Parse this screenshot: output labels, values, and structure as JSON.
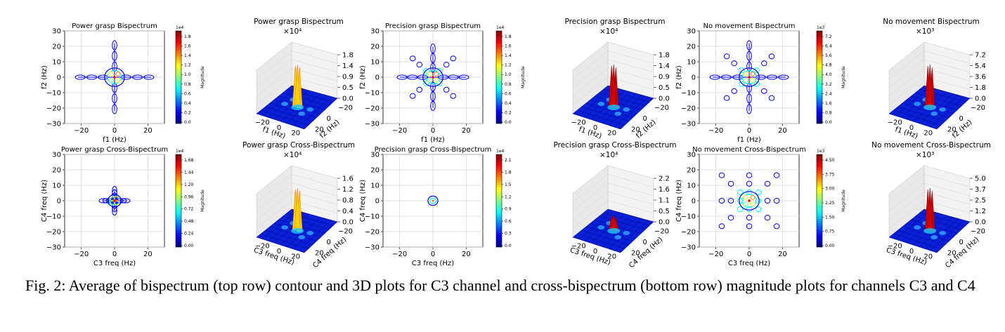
{
  "caption": {
    "label": "Fig. 2:",
    "text": "Average of bispectrum (top row) contour and 3D plots for C3 channel and cross-bispectrum (bottom row) magnitude plots for channels C3 and C4"
  },
  "colormap": [
    "#00007f",
    "#0000ff",
    "#0080ff",
    "#00ffff",
    "#80ff80",
    "#ffff00",
    "#ff8000",
    "#ff0000",
    "#7f0000"
  ],
  "chart_data": [
    {
      "type": "heatmap",
      "title": "Power grasp Bispectrum",
      "xlabel": "f1 (Hz)",
      "ylabel": "f2 (Hz)",
      "xlim": [
        -30,
        30
      ],
      "ylim": [
        -30,
        30
      ],
      "xticks": [
        -20,
        0,
        20
      ],
      "yticks": [
        -30,
        -20,
        -10,
        0,
        10,
        20,
        30
      ],
      "pattern": "cross",
      "spread": 1.0,
      "colorbar": {
        "label": "Magnitude",
        "exponent": "1e4",
        "ticks": [
          "0.0",
          "0.2",
          "0.4",
          "0.6",
          "0.8",
          "1.0",
          "1.2",
          "1.4",
          "1.6",
          "1.8"
        ]
      }
    },
    {
      "type": "surface",
      "title": "Power grasp Bispectrum",
      "multiplier": "×10⁴",
      "xlabel": "f1 (Hz)",
      "ylabel": "f2 (Hz)",
      "zticks": [
        "0.0",
        "0.5",
        "0.9",
        "1.4",
        "1.8"
      ],
      "xticks": [
        "−20",
        "0",
        "20"
      ],
      "yticks": [
        "20",
        "0",
        "−20"
      ],
      "peak": "yellow"
    },
    {
      "type": "heatmap",
      "title": "Precision grasp Bispectrum",
      "xlabel": "f1 (Hz)",
      "ylabel": "f2 (Hz)",
      "xlim": [
        -30,
        30
      ],
      "ylim": [
        -30,
        30
      ],
      "xticks": [
        -20,
        0,
        20
      ],
      "yticks": [
        -30,
        -20,
        -10,
        0,
        10,
        20,
        30
      ],
      "pattern": "star",
      "spread": 0.9,
      "colorbar": {
        "label": "Magnitude",
        "exponent": "1e4",
        "ticks": [
          "0.0",
          "0.2",
          "0.4",
          "0.6",
          "0.8",
          "1.0",
          "1.2",
          "1.4",
          "1.6",
          "1.8"
        ]
      }
    },
    {
      "type": "surface",
      "title": "Precision grasp Bispectrum",
      "multiplier": "×10⁴",
      "xlabel": "f1 (Hz)",
      "ylabel": "f2 (Hz)",
      "zticks": [
        "0.0",
        "0.5",
        "0.9",
        "1.4",
        "1.8"
      ],
      "xticks": [
        "−20",
        "0",
        "20"
      ],
      "yticks": [
        "20",
        "0",
        "−20"
      ],
      "peak": "red"
    },
    {
      "type": "heatmap",
      "title": "No movement Bispectrum",
      "xlabel": "f1 (Hz)",
      "ylabel": "f2 (Hz)",
      "xlim": [
        -30,
        30
      ],
      "ylim": [
        -30,
        30
      ],
      "xticks": [
        -20,
        0,
        20
      ],
      "yticks": [
        -30,
        -20,
        -10,
        0,
        10,
        20,
        30
      ],
      "pattern": "burst",
      "spread": 1.0,
      "colorbar": {
        "label": "Magnitude",
        "exponent": "1e3",
        "ticks": [
          "0.0",
          "0.8",
          "1.6",
          "2.4",
          "3.2",
          "4.0",
          "4.8",
          "5.6",
          "6.4",
          "7.2"
        ]
      }
    },
    {
      "type": "surface",
      "title": "No movement Bispectrum",
      "multiplier": "×10³",
      "xlabel": "f1 (Hz)",
      "ylabel": "f2 (Hz)",
      "zticks": [
        "0.0",
        "1.8",
        "3.6",
        "5.4",
        "7.2"
      ],
      "xticks": [
        "−20",
        "0",
        "20"
      ],
      "yticks": [
        "20",
        "0",
        "−20"
      ],
      "peak": "red"
    },
    {
      "type": "heatmap",
      "title": "Power grasp Cross-Bispectrum",
      "xlabel": "C3 freq (Hz)",
      "ylabel": "C4 freq (Hz)",
      "xlim": [
        -30,
        30
      ],
      "ylim": [
        -30,
        30
      ],
      "xticks": [
        -20,
        0,
        20
      ],
      "yticks": [
        -30,
        -20,
        -10,
        0,
        10,
        20,
        30
      ],
      "pattern": "small-cross",
      "spread": 0.75,
      "colorbar": {
        "label": "Magnitude",
        "exponent": "1e4",
        "ticks": [
          "0.00",
          "0.24",
          "0.48",
          "0.72",
          "0.96",
          "1.20",
          "1.44",
          "1.68"
        ]
      }
    },
    {
      "type": "surface",
      "title": "Power grasp Cross-Bispectrum",
      "multiplier": "×10⁴",
      "xlabel": "C3 freq (Hz)",
      "ylabel": "C4 freq (Hz)",
      "zticks": [
        "0.0",
        "0.4",
        "0.8",
        "1.2",
        "1.6"
      ],
      "xticks": [
        "−20",
        "0",
        "20"
      ],
      "yticks": [
        "20",
        "0",
        "−20"
      ],
      "peak": "yellow"
    },
    {
      "type": "heatmap",
      "title": "Precision grasp Cross-Bispectrum",
      "xlabel": "C3 freq (Hz)",
      "ylabel": "C4 freq (Hz)",
      "xlim": [
        -30,
        30
      ],
      "ylim": [
        -30,
        30
      ],
      "xticks": [
        -20,
        0,
        20
      ],
      "yticks": [
        -30,
        -20,
        -10,
        0,
        10,
        20,
        30
      ],
      "pattern": "dot",
      "spread": 0.3,
      "colorbar": {
        "label": "",
        "exponent": "1e4",
        "ticks": [
          "0.0",
          "0.3",
          "0.6",
          "0.9",
          "1.2",
          "1.5",
          "1.8",
          "2.1"
        ]
      }
    },
    {
      "type": "surface",
      "title": "Precision grasp Cross-Bispectrum",
      "multiplier": "×10⁴",
      "xlabel": "C3 freq (Hz)",
      "ylabel": "C4 freq (Hz)",
      "zticks": [
        "0.0",
        "0.5",
        "1.1",
        "1.6",
        "2.2"
      ],
      "xticks": [
        "−20",
        "0",
        "20"
      ],
      "yticks": [
        "20",
        "0",
        "−20"
      ],
      "peak": "red-small"
    },
    {
      "type": "heatmap",
      "title": "No movement Cross-Bispectrum",
      "xlabel": "C3 freq (Hz)",
      "ylabel": "C4 freq (Hz)",
      "xlim": [
        -30,
        30
      ],
      "ylim": [
        -30,
        30
      ],
      "xticks": [
        -20,
        0,
        20
      ],
      "yticks": [
        -30,
        -20,
        -10,
        0,
        10,
        20,
        30
      ],
      "pattern": "diamond",
      "spread": 1.0,
      "colorbar": {
        "label": "Magnitude",
        "exponent": "1e3",
        "ticks": [
          "0.00",
          "0.75",
          "1.50",
          "2.25",
          "3.00",
          "3.75",
          "4.50"
        ]
      }
    },
    {
      "type": "surface",
      "title": "No movement Cross-Bispectrum",
      "multiplier": "×10³",
      "xlabel": "C3 freq (Hz)",
      "ylabel": "C4 freq (Hz)",
      "zticks": [
        "0.0",
        "1.2",
        "2.5",
        "3.7",
        "5.0"
      ],
      "xticks": [
        "−20",
        "0",
        "20"
      ],
      "yticks": [
        "20",
        "0",
        "−20"
      ],
      "peak": "red"
    }
  ]
}
